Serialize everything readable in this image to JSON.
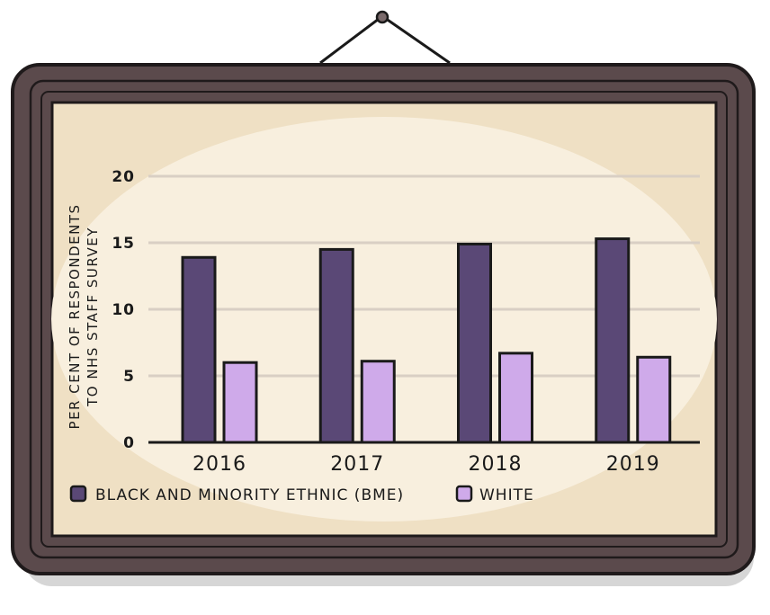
{
  "chart_data": {
    "type": "bar",
    "categories": [
      "2016",
      "2017",
      "2018",
      "2019"
    ],
    "series": [
      {
        "name": "BLACK AND MINORITY ETHNIC (BME)",
        "color": "#5a4876",
        "values": [
          13.9,
          14.5,
          14.9,
          15.3
        ]
      },
      {
        "name": "WHITE",
        "color": "#cfaaea",
        "values": [
          6.0,
          6.1,
          6.7,
          6.4
        ]
      }
    ],
    "ylabel_lines": [
      "PER CENT OF RESPONDENTS",
      "TO NHS STAFF SURVEY"
    ],
    "ylim": [
      0,
      20
    ],
    "yticks": [
      0,
      5,
      10,
      15,
      20
    ],
    "grid": true,
    "legend_position": "bottom-left"
  },
  "colors": {
    "frame": "#5b4a4c",
    "frame_outline": "#1f1a1b",
    "board": "#f6ebd6",
    "gridline": "#d9cfc4"
  }
}
